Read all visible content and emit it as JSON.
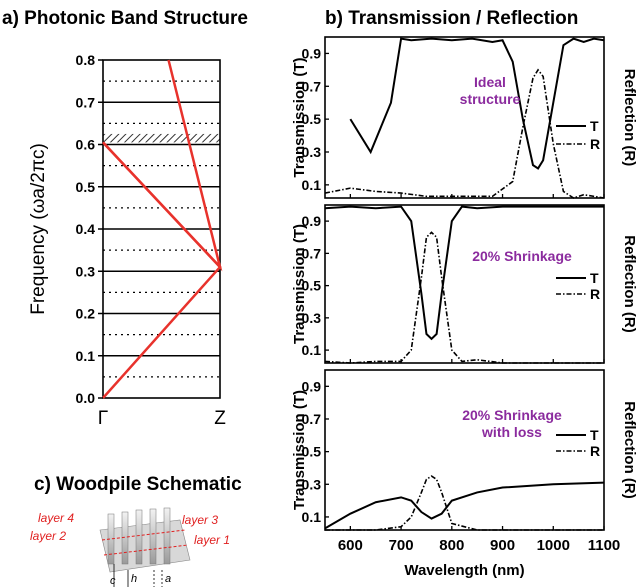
{
  "panels": {
    "a_title": "a) Photonic Band Structure",
    "b_title": "b) Transmission / Reflection",
    "c_title": "c) Woodpile Schematic"
  },
  "band": {
    "ylabel": "Frequency (ωa/2πc)",
    "x_tick_left": "Γ",
    "x_tick_right": "Z",
    "y_ticks": [
      "0.0",
      "0.1",
      "0.2",
      "0.3",
      "0.4",
      "0.5",
      "0.6",
      "0.7",
      "0.8"
    ]
  },
  "trans": {
    "ylabel_left": "Transmission (T)",
    "ylabel_right": "Reflection (R)",
    "xlabel": "Wavelength (nm)",
    "x_ticks": [
      "600",
      "700",
      "800",
      "900",
      "1000",
      "1100"
    ],
    "y_ticks": [
      "0.1",
      "0.3",
      "0.5",
      "0.7",
      "0.9"
    ],
    "legend_T": "T",
    "legend_R": "R",
    "panel1_label": [
      "Ideal",
      "structure"
    ],
    "panel2_label": [
      "20% Shrinkage"
    ],
    "panel3_label": [
      "20% Shrinkage",
      "with loss"
    ]
  },
  "schematic": {
    "layer4": "layer 4",
    "layer3": "layer 3",
    "layer2": "layer 2",
    "layer1": "layer 1",
    "c": "c",
    "h": "h",
    "a": "a"
  },
  "colors": {
    "band_line": "#e8322c",
    "label_purple": "#8b2b9e",
    "schematic_red": "#e02020"
  },
  "chart_data": [
    {
      "type": "line",
      "title": "a) Photonic Band Structure",
      "ylabel": "Frequency (ωa/2πc)",
      "x_categories": [
        "Γ",
        "Z"
      ],
      "ylim": [
        0,
        0.8
      ],
      "band_gap": [
        0.605,
        0.625
      ],
      "solid_levels": [
        0.1,
        0.2,
        0.3,
        0.4,
        0.5,
        0.6,
        0.7
      ],
      "dotted_levels": [
        0.05,
        0.15,
        0.25,
        0.35,
        0.45,
        0.55,
        0.65,
        0.75
      ],
      "series": [
        {
          "x": [
            0,
            1,
            0
          ],
          "y": [
            0,
            0.31,
            0.605
          ]
        },
        {
          "x": [
            0,
            1,
            0.56
          ],
          "y": [
            0.605,
            0.31,
            0.8
          ]
        }
      ]
    },
    {
      "type": "line",
      "title": "b) Transmission / Reflection",
      "xlabel": "Wavelength (nm)",
      "xlim": [
        550,
        1100
      ],
      "ylim": [
        0.02,
        1.0
      ],
      "panels": [
        {
          "name": "Ideal structure",
          "T": {
            "x": [
              600,
              640,
              680,
              700,
              720,
              760,
              800,
              840,
              880,
              900,
              920,
              940,
              960,
              970,
              980,
              1000,
              1020,
              1040,
              1060,
              1080,
              1100
            ],
            "y": [
              0.5,
              0.3,
              0.6,
              0.99,
              0.98,
              0.99,
              0.98,
              0.99,
              0.97,
              0.98,
              0.85,
              0.5,
              0.22,
              0.2,
              0.25,
              0.6,
              0.95,
              0.99,
              0.97,
              0.99,
              0.98
            ]
          },
          "R": {
            "x": [
              550,
              600,
              650,
              700,
              750,
              800,
              880,
              920,
              940,
              960,
              970,
              980,
              1000,
              1020,
              1040,
              1060,
              1100
            ],
            "y": [
              0.05,
              0.08,
              0.06,
              0.05,
              0.03,
              0.03,
              0.03,
              0.12,
              0.45,
              0.75,
              0.8,
              0.76,
              0.35,
              0.06,
              0.02,
              0.04,
              0.02
            ]
          }
        },
        {
          "name": "20% Shrinkage",
          "T": {
            "x": [
              550,
              600,
              650,
              700,
              720,
              740,
              750,
              760,
              770,
              780,
              800,
              820,
              850,
              900,
              1000,
              1100
            ],
            "y": [
              0.98,
              0.99,
              0.98,
              0.99,
              0.9,
              0.45,
              0.2,
              0.17,
              0.2,
              0.45,
              0.9,
              0.99,
              0.98,
              0.99,
              0.99,
              0.99
            ]
          },
          "R": {
            "x": [
              550,
              600,
              650,
              700,
              720,
              740,
              750,
              760,
              770,
              780,
              800,
              820,
              850,
              900,
              1000,
              1100
            ],
            "y": [
              0.03,
              0.02,
              0.03,
              0.03,
              0.1,
              0.55,
              0.8,
              0.83,
              0.8,
              0.55,
              0.1,
              0.03,
              0.04,
              0.02,
              0.02,
              0.02
            ]
          }
        },
        {
          "name": "20% Shrinkage with loss",
          "T": {
            "x": [
              550,
              600,
              650,
              700,
              720,
              740,
              760,
              780,
              800,
              850,
              900,
              1000,
              1100
            ],
            "y": [
              0.03,
              0.12,
              0.19,
              0.22,
              0.2,
              0.13,
              0.09,
              0.12,
              0.2,
              0.25,
              0.28,
              0.3,
              0.31
            ]
          },
          "R": {
            "x": [
              550,
              600,
              650,
              700,
              720,
              740,
              750,
              760,
              770,
              780,
              800,
              850,
              1000,
              1100
            ],
            "y": [
              0.02,
              0.02,
              0.02,
              0.04,
              0.1,
              0.25,
              0.33,
              0.35,
              0.33,
              0.25,
              0.06,
              0.02,
              0.02,
              0.02
            ]
          }
        }
      ]
    }
  ]
}
